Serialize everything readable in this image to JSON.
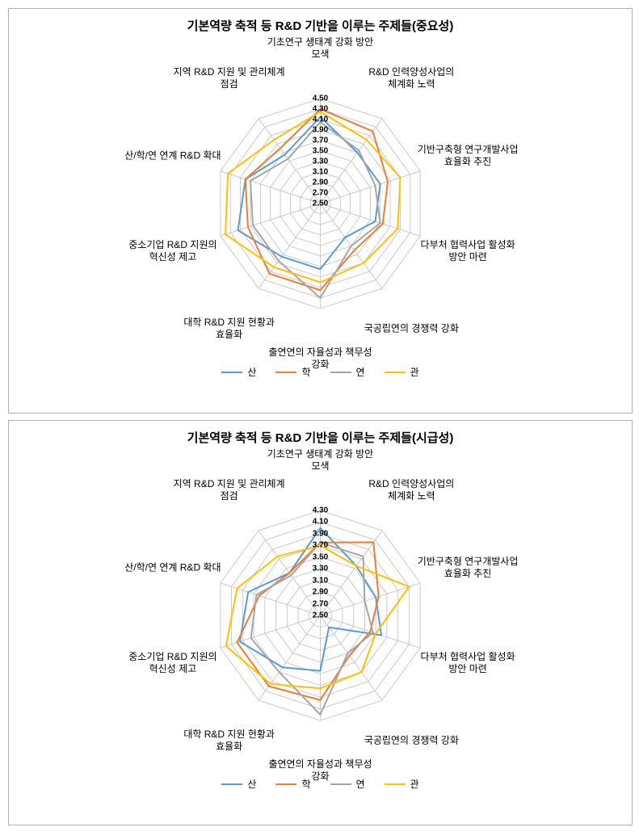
{
  "charts": [
    {
      "title": "기본역량 축적 등 R&D 기반을 이루는 주제들(중요성)",
      "type": "radar",
      "background_color": "#ffffff",
      "grid_color": "#bfbfbf",
      "axis_line_color": "#bfbfbf",
      "title_fontsize": 15,
      "label_fontsize": 12,
      "tick_fontsize": 10,
      "line_width": 2,
      "categories": [
        "기초연구 생태계 강화 방안\n모색",
        "R&D 인력양성사업의\n체계화 노력",
        "기반구축형 연구개발사업\n효율화 추진",
        "다부처 협력사업 활성화\n방안 마련",
        "국공립연의 경쟁력 강화",
        "출연연의 자율성과 책무성\n강화",
        "대학 R&D 지원 현황과\n효율화",
        "중소기업 R&D 지원의\n혁신성 제고",
        "산/학/연 연계 R&D 확대",
        "지역 R&D 지원 및 관리체계\n점검"
      ],
      "ticks": [
        2.5,
        2.7,
        2.9,
        3.1,
        3.3,
        3.5,
        3.7,
        3.9,
        4.1,
        4.3,
        4.5
      ],
      "min": 2.5,
      "max": 4.5,
      "series": [
        {
          "name": "산",
          "color": "#5b9bd5",
          "values": [
            4.15,
            3.7,
            3.7,
            3.6,
            3.3,
            3.75,
            3.75,
            4.15,
            4.0,
            3.65
          ]
        },
        {
          "name": "학",
          "color": "#ed7d31",
          "values": [
            4.3,
            4.2,
            3.85,
            3.75,
            3.6,
            4.15,
            4.15,
            3.95,
            4.0,
            3.8
          ]
        },
        {
          "name": "연",
          "color": "#a5a5a5",
          "values": [
            4.05,
            3.75,
            3.6,
            3.7,
            3.5,
            4.3,
            3.85,
            3.85,
            3.9,
            3.55
          ]
        },
        {
          "name": "관",
          "color": "#ffc000",
          "values": [
            4.25,
            4.0,
            4.1,
            4.05,
            3.9,
            4.0,
            4.0,
            4.4,
            4.35,
            4.0
          ]
        }
      ],
      "legend_labels": [
        "산",
        "학",
        "연",
        "관"
      ]
    },
    {
      "title": "기본역량 축적 등 R&D 기반을 이루는 주제들(시급성)",
      "type": "radar",
      "background_color": "#ffffff",
      "grid_color": "#bfbfbf",
      "axis_line_color": "#bfbfbf",
      "title_fontsize": 15,
      "label_fontsize": 12,
      "tick_fontsize": 10,
      "line_width": 2,
      "categories": [
        "기초연구 생태계 강화 방안\n모색",
        "R&D 인력양성사업의\n체계화 노력",
        "기반구축형 연구개발사업\n효율화 추진",
        "다부처 협력사업 활성화\n방안 마련",
        "국공립연의 경쟁력 강화",
        "출연연의 자율성과 책무성\n강화",
        "대학 R&D 지원 현황과\n효율화",
        "중소기업 R&D 지원의\n혁신성 제고",
        "산/학/연 연계 R&D 확대",
        "지역 R&D 지원 및 관리체계\n점검"
      ],
      "ticks": [
        2.5,
        2.7,
        2.9,
        3.1,
        3.3,
        3.5,
        3.7,
        3.9,
        4.1,
        4.3
      ],
      "min": 2.5,
      "max": 4.3,
      "series": [
        {
          "name": "산",
          "color": "#5b9bd5",
          "values": [
            4.0,
            3.55,
            3.5,
            3.6,
            2.75,
            3.45,
            3.6,
            3.95,
            3.8,
            3.4
          ]
        },
        {
          "name": "학",
          "color": "#ed7d31",
          "values": [
            3.75,
            4.05,
            3.55,
            3.4,
            3.35,
            3.95,
            4.0,
            4.0,
            3.6,
            3.4
          ]
        },
        {
          "name": "연",
          "color": "#a5a5a5",
          "values": [
            3.75,
            3.75,
            3.3,
            3.45,
            3.3,
            4.2,
            3.7,
            3.75,
            3.65,
            3.35
          ]
        },
        {
          "name": "관",
          "color": "#ffc000",
          "values": [
            3.7,
            3.55,
            4.1,
            3.5,
            3.7,
            3.75,
            3.95,
            4.2,
            4.0,
            3.75
          ]
        }
      ],
      "legend_labels": [
        "산",
        "학",
        "연",
        "관"
      ]
    }
  ]
}
